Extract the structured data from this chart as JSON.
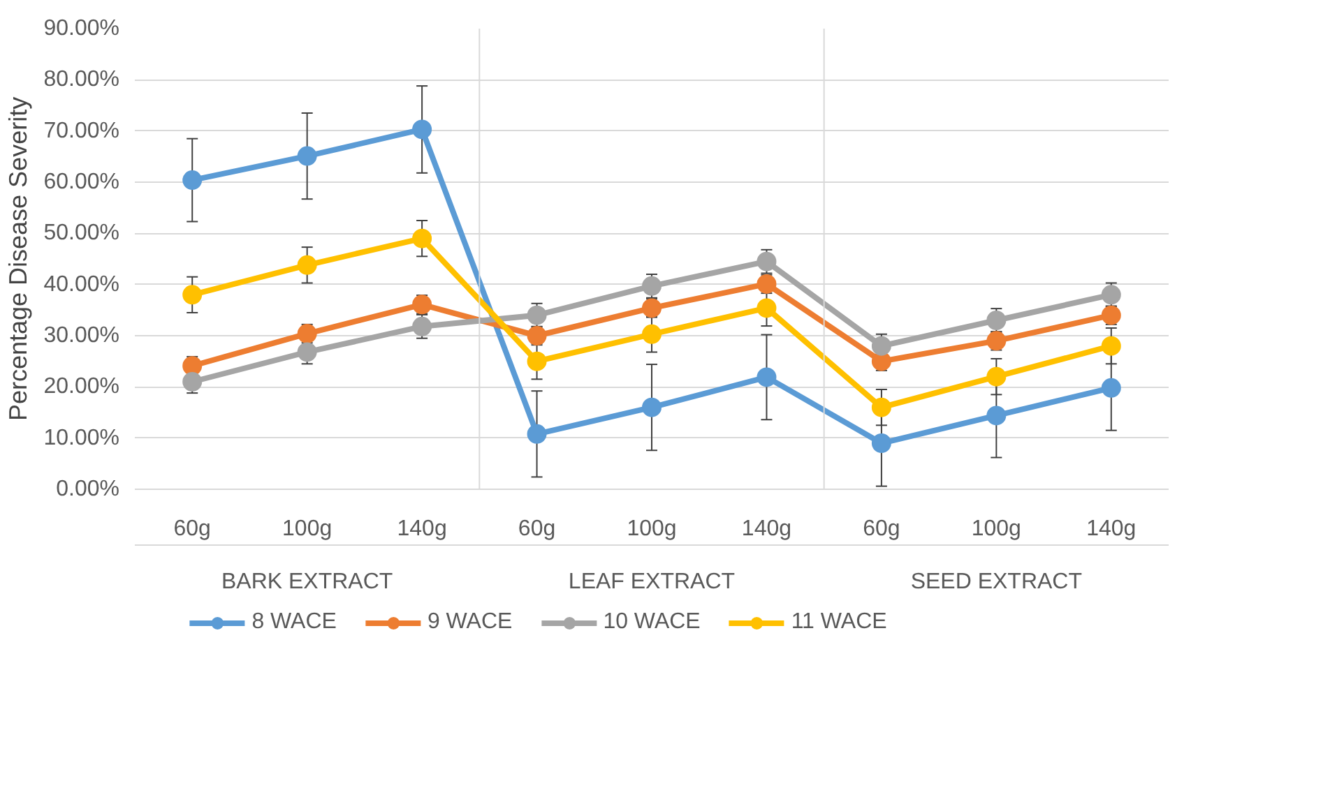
{
  "chart_data": {
    "type": "line",
    "ylabel": "Percentage Disease Severity",
    "categories": [
      "60g",
      "100g",
      "140g",
      "60g",
      "100g",
      "140g",
      "60g",
      "100g",
      "140g"
    ],
    "annotations": [
      "BARK EXTRACT",
      "LEAF EXTRACT",
      "SEED EXTRACT"
    ],
    "series": [
      {
        "name": "8 WACE",
        "color": "#5b9bd5",
        "values": [
          60.4,
          65.1,
          70.3,
          10.8,
          16.0,
          21.9,
          9.0,
          14.4,
          19.8
        ],
        "errors": [
          8.1,
          8.4,
          8.5,
          8.4,
          8.4,
          8.3,
          8.4,
          8.2,
          8.3
        ]
      },
      {
        "name": "9 WACE",
        "color": "#ed7d31",
        "values": [
          24.1,
          30.4,
          36.1,
          30.0,
          35.4,
          40.1,
          25.0,
          29.0,
          34.0
        ],
        "errors": [
          1.8,
          1.8,
          1.8,
          1.8,
          1.8,
          1.8,
          1.8,
          1.8,
          1.8
        ]
      },
      {
        "name": "10 WACE",
        "color": "#a5a5a5",
        "values": [
          21.0,
          26.8,
          31.8,
          34.0,
          39.7,
          44.5,
          28.0,
          33.0,
          38.0
        ],
        "errors": [
          2.2,
          2.3,
          2.3,
          2.3,
          2.3,
          2.3,
          2.3,
          2.3,
          2.3
        ]
      },
      {
        "name": "11 WACE",
        "color": "#ffc000",
        "values": [
          38.0,
          43.8,
          49.0,
          25.0,
          30.3,
          35.4,
          16.0,
          22.0,
          28.0
        ],
        "errors": [
          3.5,
          3.5,
          3.5,
          3.5,
          3.5,
          3.5,
          3.5,
          3.5,
          3.5
        ]
      }
    ],
    "ylim": [
      0,
      90
    ],
    "yticks": [
      {
        "value": 0,
        "label": "0.00%"
      },
      {
        "value": 10,
        "label": "10.00%"
      },
      {
        "value": 20,
        "label": "20.00%"
      },
      {
        "value": 30,
        "label": "30.00%"
      },
      {
        "value": 40,
        "label": "40.00%"
      },
      {
        "value": 50,
        "label": "50.00%"
      },
      {
        "value": 60,
        "label": "60.00%"
      },
      {
        "value": 70,
        "label": "70.00%"
      },
      {
        "value": 80,
        "label": "80.00%"
      },
      {
        "value": 90,
        "label": "90.00%"
      }
    ],
    "grid": "y",
    "legend": "bottom",
    "marker": "circle",
    "line_style": "solid"
  }
}
